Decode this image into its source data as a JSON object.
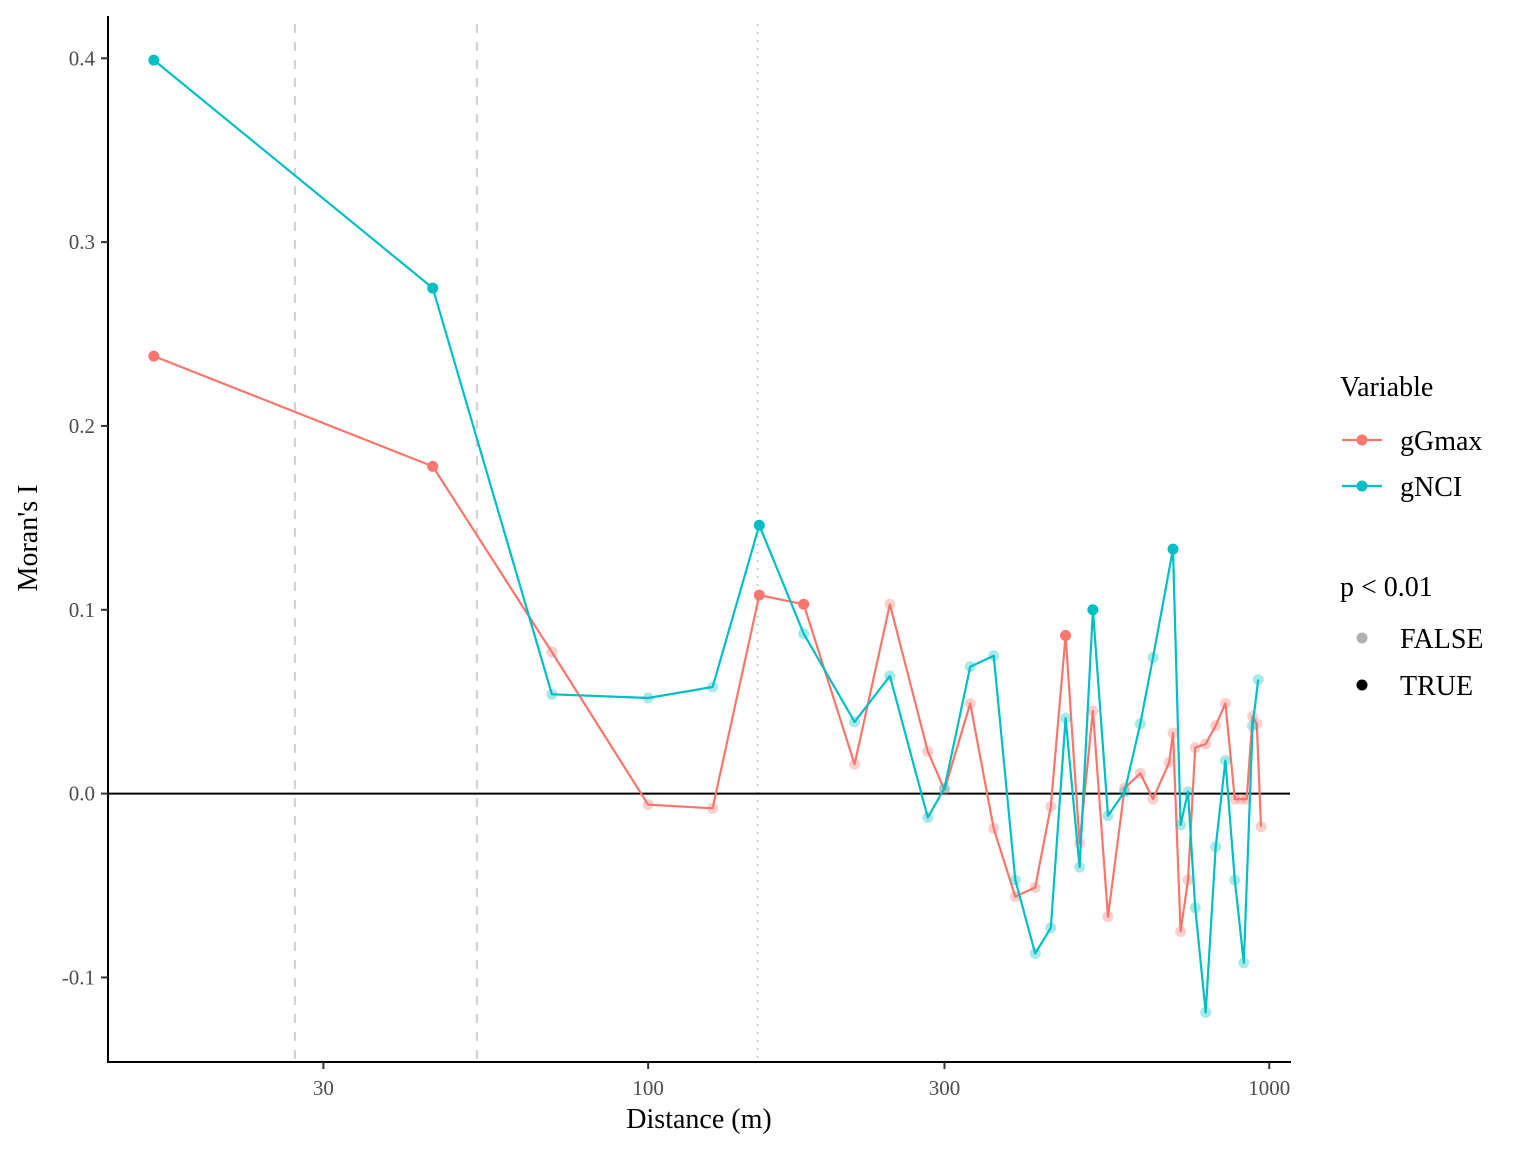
{
  "chart_data": {
    "type": "line",
    "xlabel": "Distance (m)",
    "ylabel": "Moran's I",
    "x_scale": "log",
    "xlim": [
      13.5,
      1080
    ],
    "ylim": [
      -0.146,
      0.423
    ],
    "x_ticks": [
      30,
      100,
      300,
      1000
    ],
    "x_tick_labels": [
      "30",
      "100",
      "300",
      "1000"
    ],
    "y_ticks": [
      -0.1,
      0.0,
      0.1,
      0.2,
      0.3,
      0.4
    ],
    "y_tick_labels": [
      "-0.1",
      "0.0",
      "0.1",
      "0.2",
      "0.3",
      "0.4"
    ],
    "hline": 0,
    "vlines": [
      {
        "x": 27,
        "style": "dashed"
      },
      {
        "x": 53,
        "style": "dashed"
      },
      {
        "x": 150,
        "style": "dotted"
      }
    ],
    "grid": false,
    "legend_position": "right",
    "legend": {
      "variable_title": "Variable",
      "significance_title": "p < 0.01",
      "significance_levels": [
        "FALSE",
        "TRUE"
      ]
    },
    "series": [
      {
        "name": "gGmax",
        "color": "#F8766D",
        "x": [
          16,
          45,
          70,
          100,
          127,
          151,
          178,
          215,
          245,
          282,
          300,
          330,
          360,
          390,
          420,
          445,
          470,
          495,
          520,
          550,
          585,
          620,
          650,
          690,
          700,
          720,
          740,
          760,
          790,
          820,
          850,
          880,
          900,
          920,
          940,
          955,
          970
        ],
        "y": [
          0.238,
          0.178,
          0.077,
          -0.006,
          -0.008,
          0.108,
          0.103,
          0.016,
          0.103,
          0.023,
          0.002,
          0.049,
          -0.019,
          -0.056,
          -0.051,
          -0.007,
          0.086,
          -0.027,
          0.045,
          -0.067,
          0.003,
          0.011,
          -0.003,
          0.017,
          0.033,
          -0.075,
          -0.047,
          0.025,
          0.027,
          0.037,
          0.049,
          -0.003,
          -0.003,
          -0.003,
          0.042,
          0.038,
          -0.018
        ],
        "significant": [
          true,
          true,
          false,
          false,
          false,
          true,
          true,
          false,
          false,
          false,
          false,
          false,
          false,
          false,
          false,
          false,
          true,
          false,
          false,
          false,
          false,
          false,
          false,
          false,
          false,
          false,
          false,
          false,
          false,
          false,
          false,
          false,
          false,
          false,
          false,
          false,
          false
        ]
      },
      {
        "name": "gNCI",
        "color": "#00BFC4",
        "x": [
          16,
          45,
          70,
          100,
          127,
          151,
          178,
          215,
          245,
          282,
          300,
          330,
          360,
          390,
          420,
          445,
          470,
          495,
          520,
          550,
          585,
          620,
          650,
          700,
          720,
          740,
          760,
          790,
          820,
          850,
          880,
          910,
          940,
          960
        ],
        "y": [
          0.399,
          0.275,
          0.054,
          0.052,
          0.058,
          0.146,
          0.087,
          0.039,
          0.064,
          -0.013,
          0.003,
          0.069,
          0.075,
          -0.047,
          -0.087,
          -0.073,
          0.041,
          -0.04,
          0.1,
          -0.012,
          0.001,
          0.038,
          0.074,
          0.133,
          -0.017,
          0.001,
          -0.062,
          -0.119,
          -0.029,
          0.018,
          -0.047,
          -0.092,
          0.037,
          0.062
        ],
        "significant": [
          true,
          true,
          false,
          false,
          false,
          true,
          false,
          false,
          false,
          false,
          false,
          false,
          false,
          false,
          false,
          false,
          false,
          false,
          true,
          false,
          false,
          false,
          false,
          true,
          false,
          false,
          false,
          false,
          false,
          false,
          false,
          false,
          false,
          false
        ]
      }
    ]
  }
}
